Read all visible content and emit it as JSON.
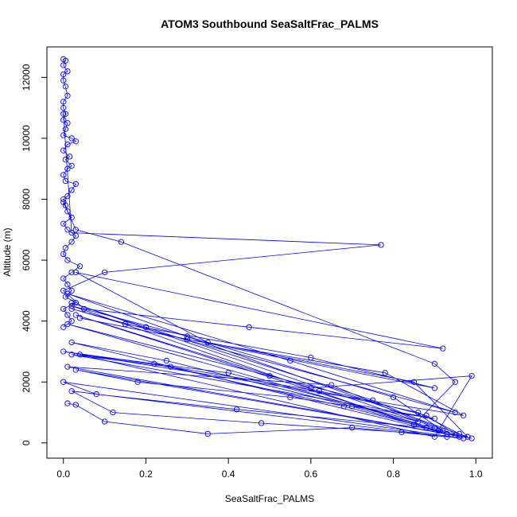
{
  "chart_data": {
    "type": "line",
    "title": "ATOM3 Southbound SeaSaltFrac_PALMS",
    "xlabel": "SeaSaltFrac_PALMS",
    "ylabel": "Altitude (m)",
    "xlim": [
      -0.04,
      1.04
    ],
    "ylim": [
      -500,
      13000
    ],
    "xticks": [
      0.0,
      0.2,
      0.4,
      0.6,
      0.8,
      1.0
    ],
    "xtick_labels": [
      "0.0",
      "0.2",
      "0.4",
      "0.6",
      "0.8",
      "1.0"
    ],
    "yticks": [
      0,
      2000,
      4000,
      6000,
      8000,
      10000,
      12000
    ],
    "ytick_labels": [
      "0",
      "2000",
      "4000",
      "6000",
      "8000",
      "10000",
      "12000"
    ],
    "series_color": "#0000ff",
    "marker": "open-circle",
    "series": [
      {
        "x": [
          0.0,
          0.005,
          0.0,
          0.01,
          0.0,
          0.0,
          0.005,
          0.01,
          0.0,
          0.0,
          0.005,
          0.0,
          0.01,
          0.005,
          0.0,
          0.02,
          0.03,
          0.01,
          0.0,
          0.015,
          0.005,
          0.02,
          0.01,
          0.0,
          0.005,
          0.03,
          0.02,
          0.01,
          0.0,
          0.005,
          0.01,
          0.02,
          0.0,
          0.01,
          0.03,
          0.02,
          0.005,
          0.0,
          0.01,
          0.04,
          0.02,
          0.0,
          0.01,
          0.02,
          0.005,
          0.03,
          0.0,
          0.01,
          0.02,
          0.0
        ],
        "y": [
          12600,
          12550,
          12400,
          12200,
          12100,
          11900,
          11700,
          11400,
          11200,
          11000,
          10800,
          10600,
          10500,
          10300,
          10100,
          10000,
          9900,
          9800,
          9600,
          9400,
          9300,
          9100,
          9000,
          8800,
          8600,
          8500,
          8300,
          8100,
          8000,
          7800,
          7600,
          7400,
          7200,
          7000,
          6800,
          6600,
          6400,
          6200,
          6000,
          5800,
          5600,
          5400,
          5200,
          5000,
          4800,
          4600,
          4400,
          4200,
          4000,
          3800
        ]
      },
      {
        "x": [
          0.0,
          0.03,
          0.14,
          0.9,
          0.95,
          0.85,
          0.02,
          0.3,
          0.8,
          0.92,
          0.01,
          0.5,
          0.88,
          0.96,
          0.02,
          0.25,
          0.7,
          0.93,
          0.03,
          0.6,
          0.99,
          0.9,
          0.04,
          0.4,
          0.86,
          0.02,
          0.2,
          0.75,
          0.95,
          0.01,
          0.65,
          0.9
        ],
        "y": [
          7900,
          7000,
          6600,
          2600,
          2000,
          600,
          4500,
          3500,
          1500,
          400,
          3900,
          2200,
          900,
          200,
          3300,
          2700,
          1200,
          300,
          4200,
          1800,
          2200,
          200,
          2900,
          2300,
          700,
          4600,
          3800,
          1400,
          250,
          2500,
          1900,
          500
        ]
      },
      {
        "x": [
          0.0,
          0.02,
          0.77,
          0.1,
          0.0,
          0.05,
          0.45,
          0.92,
          0.03,
          0.35,
          0.85,
          0.98,
          0.01,
          0.55,
          0.95,
          0.02,
          0.15,
          0.6,
          0.9,
          0.04,
          0.3,
          0.78,
          0.97,
          0.0,
          0.22,
          0.68,
          0.91
        ],
        "y": [
          10800,
          6900,
          6500,
          5600,
          5000,
          4400,
          3800,
          3100,
          5600,
          3300,
          2000,
          200,
          4900,
          2700,
          1000,
          4400,
          3900,
          2800,
          1800,
          4100,
          3400,
          2300,
          900,
          3000,
          2600,
          1200,
          400
        ]
      },
      {
        "x": [
          0.01,
          0.03,
          0.1,
          0.35,
          0.7,
          0.93,
          0.02,
          0.12,
          0.48,
          0.82,
          0.97,
          0.0,
          0.08,
          0.42,
          0.88,
          0.99,
          0.03,
          0.18,
          0.55,
          0.9,
          0.02,
          0.26,
          0.62,
          0.86,
          0.96
        ],
        "y": [
          1300,
          1250,
          700,
          300,
          500,
          200,
          1700,
          1000,
          650,
          350,
          150,
          2000,
          1600,
          1100,
          500,
          150,
          2400,
          2000,
          1500,
          800,
          2900,
          2500,
          1700,
          1000,
          300
        ]
      }
    ]
  }
}
